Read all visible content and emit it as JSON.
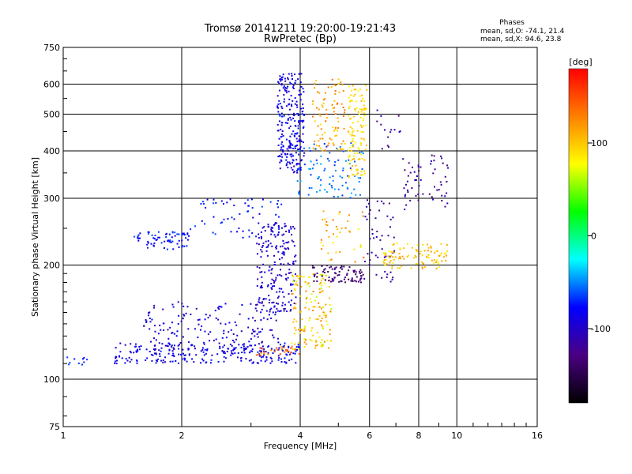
{
  "chart_data": {
    "type": "scatter",
    "title": "Tromsø 20141211 19:20:00-19:21:43",
    "subtitle": "RwPretec (Bp)",
    "xlabel": "Frequency [MHz]",
    "ylabel": "Stationary phase Virtual Height [km]",
    "x_scale": "log",
    "y_scale": "log",
    "xlim": [
      1,
      16
    ],
    "ylim": [
      75,
      750
    ],
    "x_ticks": [
      1,
      2,
      4,
      6,
      8,
      10,
      16
    ],
    "y_ticks": [
      75,
      100,
      200,
      300,
      400,
      500,
      600,
      750
    ],
    "grid": true,
    "stats": {
      "heading": "Phases",
      "line_o": "mean, sd,O: -74.1, 21.4",
      "line_x": "mean, sd,X: 94.6, 23.8"
    },
    "colorbar": {
      "label": "[deg]",
      "range": [
        -180,
        180
      ],
      "ticks": [
        100,
        0,
        -100
      ],
      "colors": [
        "#ff0000",
        "#ff8000",
        "#ffff00",
        "#00ff00",
        "#00ffff",
        "#0000ff",
        "#4b0082",
        "#000000"
      ]
    },
    "clusters": [
      {
        "f": [
          1.0,
          1.15
        ],
        "h": [
          108,
          115
        ],
        "phase": [
          -80,
          -60
        ],
        "n": 10
      },
      {
        "f": [
          1.35,
          4.0
        ],
        "h": [
          110,
          125
        ],
        "phase": [
          -105,
          -70
        ],
        "n": 260
      },
      {
        "f": [
          1.6,
          3.6
        ],
        "h": [
          118,
          160
        ],
        "phase": [
          -115,
          -75
        ],
        "n": 160
      },
      {
        "f": [
          3.1,
          3.9
        ],
        "h": [
          150,
          260
        ],
        "phase": [
          -115,
          -80
        ],
        "n": 200
      },
      {
        "f": [
          3.1,
          4.0
        ],
        "h": [
          115,
          122
        ],
        "phase": [
          120,
          160
        ],
        "n": 30
      },
      {
        "f": [
          3.8,
          4.8
        ],
        "h": [
          120,
          190
        ],
        "phase": [
          60,
          130
        ],
        "n": 150
      },
      {
        "f": [
          1.5,
          2.1
        ],
        "h": [
          220,
          245
        ],
        "phase": [
          -90,
          -60
        ],
        "n": 70
      },
      {
        "f": [
          2.1,
          3.6
        ],
        "h": [
          235,
          300
        ],
        "phase": [
          -90,
          -60
        ],
        "n": 60
      },
      {
        "f": [
          3.5,
          4.1
        ],
        "h": [
          350,
          640
        ],
        "phase": [
          -105,
          -70
        ],
        "n": 240
      },
      {
        "f": [
          3.9,
          5.8
        ],
        "h": [
          300,
          420
        ],
        "phase": [
          -70,
          -40
        ],
        "n": 90
      },
      {
        "f": [
          4.3,
          5.2
        ],
        "h": [
          400,
          620
        ],
        "phase": [
          90,
          140
        ],
        "n": 90
      },
      {
        "f": [
          5.3,
          5.9
        ],
        "h": [
          340,
          600
        ],
        "phase": [
          75,
          110
        ],
        "n": 120
      },
      {
        "f": [
          4.3,
          5.8
        ],
        "h": [
          180,
          200
        ],
        "phase": [
          -150,
          -120
        ],
        "n": 80
      },
      {
        "f": [
          4.5,
          5.8
        ],
        "h": [
          200,
          280
        ],
        "phase": [
          80,
          140
        ],
        "n": 40
      },
      {
        "f": [
          5.8,
          7.0
        ],
        "h": [
          180,
          300
        ],
        "phase": [
          -140,
          -100
        ],
        "n": 50
      },
      {
        "f": [
          6.5,
          9.5
        ],
        "h": [
          195,
          230
        ],
        "phase": [
          80,
          120
        ],
        "n": 100
      },
      {
        "f": [
          7.3,
          9.5
        ],
        "h": [
          280,
          390
        ],
        "phase": [
          -140,
          -100
        ],
        "n": 60
      },
      {
        "f": [
          6.2,
          7.2
        ],
        "h": [
          400,
          520
        ],
        "phase": [
          -130,
          -100
        ],
        "n": 15
      }
    ]
  }
}
